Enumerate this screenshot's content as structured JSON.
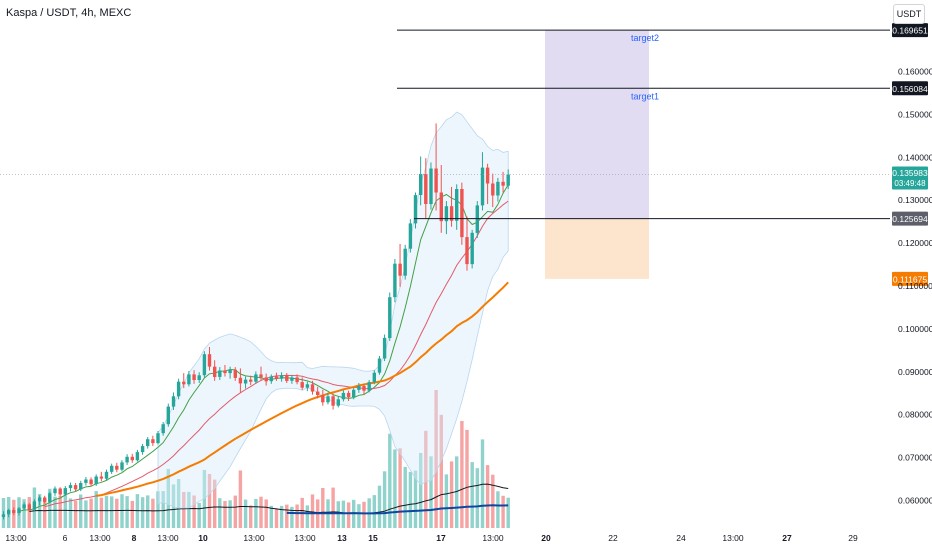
{
  "header": {
    "title": "Kaspa / USDT, 4h, MEXC",
    "currency": "USDT"
  },
  "colors": {
    "up": "#26a69a",
    "down": "#ef5350",
    "volUp": "#8fd3cc",
    "volDown": "#f5a3a3",
    "ma_fast": "#43a047",
    "ma_mid": "#e35a6b",
    "ma_slow": "#f57c00",
    "vol_ma": "#131722",
    "vol_ma2": "#0d47a1",
    "band": "#d8eaf8",
    "band_line": "#b9d6ef",
    "target_box": "#e2dcf3",
    "stop_box": "#fde4cc"
  },
  "chart_data": {
    "type": "candlestick",
    "symbol": "Kaspa / USDT",
    "interval": "4h",
    "exchange": "MEXC",
    "ylim": [
      0.055,
      0.172
    ],
    "y_ticks": [
      "0.060000",
      "0.070000",
      "0.080000",
      "0.090000",
      "0.100000",
      "0.110000",
      "0.120000",
      "0.130000",
      "0.140000",
      "0.150000",
      "0.160000"
    ],
    "x_ticks": [
      "13:00",
      "6",
      "13:00",
      "8",
      "13:00",
      "10",
      "13:00",
      "13:00",
      "13",
      "15",
      "17",
      "13:00",
      "20",
      "22",
      "24",
      "13:00",
      "27",
      "29"
    ],
    "current_price": "0.135983",
    "countdown": "03:49:48",
    "levels": [
      {
        "price": 0.169651,
        "label": "0.169651",
        "style": "dark"
      },
      {
        "price": 0.156084,
        "label": "0.156084",
        "style": "dark"
      },
      {
        "price": 0.125694,
        "label": "0.125694",
        "style": "gray"
      },
      {
        "price": 0.111675,
        "label": "0.111675",
        "style": "orange"
      }
    ],
    "annotations": [
      "target2",
      "target1"
    ],
    "target_zone": [
      0.125694,
      0.169651
    ],
    "stop_zone": [
      0.111675,
      0.125694
    ],
    "candles": [
      [
        0.0562,
        0.0575,
        0.0556,
        0.0568
      ],
      [
        0.0568,
        0.0581,
        0.0561,
        0.0578
      ],
      [
        0.0578,
        0.0584,
        0.0566,
        0.0571
      ],
      [
        0.0571,
        0.0585,
        0.0565,
        0.0582
      ],
      [
        0.0582,
        0.0596,
        0.0577,
        0.0591
      ],
      [
        0.0591,
        0.0594,
        0.0574,
        0.0579
      ],
      [
        0.0579,
        0.0603,
        0.0576,
        0.0598
      ],
      [
        0.0598,
        0.0612,
        0.0589,
        0.0607
      ],
      [
        0.0607,
        0.0611,
        0.0593,
        0.0597
      ],
      [
        0.0597,
        0.0621,
        0.0594,
        0.0617
      ],
      [
        0.0617,
        0.0633,
        0.0611,
        0.0628
      ],
      [
        0.0628,
        0.0631,
        0.0609,
        0.0614
      ],
      [
        0.0614,
        0.0634,
        0.0611,
        0.0629
      ],
      [
        0.0629,
        0.0642,
        0.0621,
        0.0636
      ],
      [
        0.0636,
        0.0641,
        0.0622,
        0.0626
      ],
      [
        0.0626,
        0.0646,
        0.0622,
        0.0641
      ],
      [
        0.0641,
        0.0655,
        0.0635,
        0.0649
      ],
      [
        0.0649,
        0.0654,
        0.0633,
        0.0638
      ],
      [
        0.0638,
        0.0661,
        0.0634,
        0.0656
      ],
      [
        0.0656,
        0.0667,
        0.0645,
        0.0651
      ],
      [
        0.0651,
        0.0672,
        0.0648,
        0.0667
      ],
      [
        0.0667,
        0.0686,
        0.0662,
        0.0681
      ],
      [
        0.0681,
        0.0688,
        0.0666,
        0.0672
      ],
      [
        0.0672,
        0.0694,
        0.0668,
        0.0689
      ],
      [
        0.0689,
        0.0708,
        0.0683,
        0.0702
      ],
      [
        0.0702,
        0.0709,
        0.0688,
        0.0694
      ],
      [
        0.0694,
        0.0718,
        0.0691,
        0.0713
      ],
      [
        0.0713,
        0.0732,
        0.0707,
        0.0727
      ],
      [
        0.0727,
        0.0748,
        0.0721,
        0.0743
      ],
      [
        0.0743,
        0.0751,
        0.0727,
        0.0734
      ],
      [
        0.0734,
        0.0762,
        0.0731,
        0.0757
      ],
      [
        0.0757,
        0.0783,
        0.0751,
        0.0778
      ],
      [
        0.0778,
        0.0826,
        0.0772,
        0.0819
      ],
      [
        0.0819,
        0.0852,
        0.0811,
        0.0843
      ],
      [
        0.0843,
        0.0884,
        0.0836,
        0.0877
      ],
      [
        0.0877,
        0.0897,
        0.0862,
        0.0871
      ],
      [
        0.0871,
        0.0902,
        0.0866,
        0.0894
      ],
      [
        0.0894,
        0.0904,
        0.0872,
        0.0881
      ],
      [
        0.0881,
        0.0899,
        0.0874,
        0.0892
      ],
      [
        0.0892,
        0.0948,
        0.0887,
        0.0941
      ],
      [
        0.0941,
        0.0958,
        0.0903,
        0.0912
      ],
      [
        0.0912,
        0.0927,
        0.0879,
        0.0888
      ],
      [
        0.0888,
        0.0911,
        0.0881,
        0.0903
      ],
      [
        0.0903,
        0.0916,
        0.0889,
        0.0897
      ],
      [
        0.0897,
        0.0912,
        0.0884,
        0.0905
      ],
      [
        0.0905,
        0.0911,
        0.0879,
        0.0886
      ],
      [
        0.0886,
        0.0908,
        0.0852,
        0.0873
      ],
      [
        0.0873,
        0.0889,
        0.0861,
        0.0882
      ],
      [
        0.0882,
        0.0891,
        0.0869,
        0.0877
      ],
      [
        0.0877,
        0.0901,
        0.0872,
        0.0894
      ],
      [
        0.0894,
        0.0912,
        0.0881,
        0.0887
      ],
      [
        0.0887,
        0.0896,
        0.0868,
        0.0878
      ],
      [
        0.0878,
        0.0894,
        0.0872,
        0.0889
      ],
      [
        0.0889,
        0.0898,
        0.0879,
        0.0884
      ],
      [
        0.0884,
        0.0899,
        0.0877,
        0.0892
      ],
      [
        0.0892,
        0.0897,
        0.0874,
        0.0879
      ],
      [
        0.0879,
        0.0893,
        0.0872,
        0.0887
      ],
      [
        0.0887,
        0.0894,
        0.0871,
        0.0876
      ],
      [
        0.0876,
        0.0887,
        0.0858,
        0.0863
      ],
      [
        0.0863,
        0.0877,
        0.0855,
        0.0871
      ],
      [
        0.0871,
        0.0879,
        0.0847,
        0.0854
      ],
      [
        0.0854,
        0.0865,
        0.0838,
        0.0846
      ],
      [
        0.0846,
        0.0858,
        0.0821,
        0.0829
      ],
      [
        0.0829,
        0.0851,
        0.0824,
        0.0843
      ],
      [
        0.0843,
        0.0849,
        0.0812,
        0.0821
      ],
      [
        0.0821,
        0.0842,
        0.0817,
        0.0836
      ],
      [
        0.0836,
        0.0857,
        0.0831,
        0.0851
      ],
      [
        0.0851,
        0.0856,
        0.0832,
        0.0841
      ],
      [
        0.0841,
        0.0863,
        0.0836,
        0.0858
      ],
      [
        0.0858,
        0.0874,
        0.0851,
        0.0867
      ],
      [
        0.0867,
        0.0872,
        0.0847,
        0.0856
      ],
      [
        0.0856,
        0.0881,
        0.0852,
        0.0876
      ],
      [
        0.0876,
        0.0904,
        0.0871,
        0.0898
      ],
      [
        0.0898,
        0.0937,
        0.0893,
        0.0931
      ],
      [
        0.0931,
        0.0987,
        0.0925,
        0.0979
      ],
      [
        0.0979,
        0.1085,
        0.0972,
        0.1074
      ],
      [
        0.1074,
        0.1163,
        0.1062,
        0.1152
      ],
      [
        0.1152,
        0.1198,
        0.1098,
        0.1124
      ],
      [
        0.1124,
        0.1196,
        0.1115,
        0.1187
      ],
      [
        0.1187,
        0.1256,
        0.1178,
        0.1246
      ],
      [
        0.1246,
        0.1318,
        0.1234,
        0.1312
      ],
      [
        0.1312,
        0.1402,
        0.1288,
        0.1361
      ],
      [
        0.1361,
        0.1398,
        0.1258,
        0.1291
      ],
      [
        0.1291,
        0.1388,
        0.1278,
        0.1374
      ],
      [
        0.1374,
        0.1479,
        0.1276,
        0.1318
      ],
      [
        0.1318,
        0.1382,
        0.1224,
        0.1251
      ],
      [
        0.1251,
        0.1298,
        0.1221,
        0.1286
      ],
      [
        0.1286,
        0.1331,
        0.1238,
        0.1252
      ],
      [
        0.1252,
        0.1337,
        0.1231,
        0.1326
      ],
      [
        0.1326,
        0.1341,
        0.1196,
        0.1214
      ],
      [
        0.1214,
        0.1262,
        0.1136,
        0.1151
      ],
      [
        0.1151,
        0.1231,
        0.1141,
        0.1224
      ],
      [
        0.1224,
        0.1298,
        0.1212,
        0.1288
      ],
      [
        0.1288,
        0.1412,
        0.1276,
        0.1376
      ],
      [
        0.1376,
        0.1385,
        0.1291,
        0.1339
      ],
      [
        0.1339,
        0.1362,
        0.1284,
        0.1311
      ],
      [
        0.1311,
        0.1352,
        0.1297,
        0.1343
      ],
      [
        0.1343,
        0.1366,
        0.1318,
        0.1334
      ],
      [
        0.1334,
        0.1372,
        0.1326,
        0.136
      ]
    ]
  }
}
